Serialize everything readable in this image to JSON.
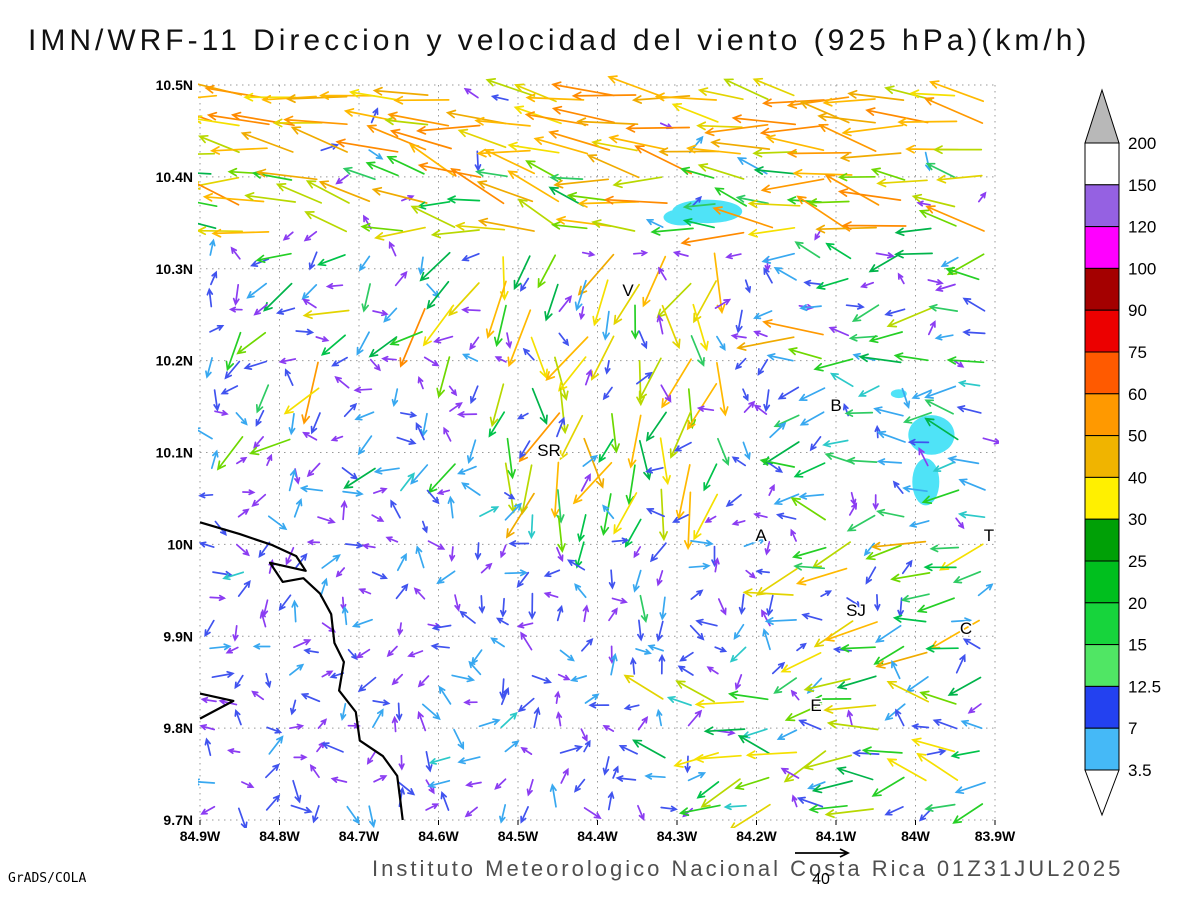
{
  "title": "IMN/WRF-11 Direccion y velocidad del viento (925 hPa)(km/h)",
  "footer": {
    "institute": "Instituto Meteorologico Nacional Costa Rica 01Z31JUL2025",
    "credit": "GrADS/COLA",
    "ref_label": "40"
  },
  "chart_data": {
    "type": "vector_field_map",
    "model": "IMN/WRF-11",
    "variable": "Direccion y velocidad del viento",
    "level": "925 hPa",
    "units": "km/h",
    "valid_time": "01Z31JUL2025",
    "reference_vector_kmh": 40,
    "lon_ticks": [
      "84.9W",
      "84.8W",
      "84.7W",
      "84.6W",
      "84.5W",
      "84.4W",
      "84.3W",
      "84.2W",
      "84.1W",
      "84W",
      "83.9W"
    ],
    "lat_ticks": [
      "10.5N",
      "10.4N",
      "10.3N",
      "10.2N",
      "10.1N",
      "10N",
      "9.9N",
      "9.8N",
      "9.7N"
    ],
    "colorbar": {
      "above_max_color": "#b8b8b8",
      "below_min_color": "#ffffff",
      "labels": [
        "200",
        "150",
        "120",
        "100",
        "90",
        "75",
        "60",
        "50",
        "40",
        "30",
        "25",
        "20",
        "15",
        "12.5",
        "7",
        "3.5"
      ],
      "segment_colors": [
        "#ffffff",
        "#9561e2",
        "#ff00ff",
        "#a40000",
        "#ec0000",
        "#ff5a00",
        "#ff9900",
        "#f0b400",
        "#fff000",
        "#00a006",
        "#00bf1e",
        "#17d43c",
        "#50e664",
        "#2341f0",
        "#45b9f7"
      ]
    },
    "cities": [
      {
        "label": "V",
        "fx": 0.538,
        "fy": 0.287
      },
      {
        "label": "B",
        "fx": 0.8,
        "fy": 0.443
      },
      {
        "label": "SR",
        "fx": 0.439,
        "fy": 0.505
      },
      {
        "label": "A",
        "fx": 0.706,
        "fy": 0.62
      },
      {
        "label": "SJ",
        "fx": 0.825,
        "fy": 0.722
      },
      {
        "label": "C",
        "fx": 0.964,
        "fy": 0.747
      },
      {
        "label": "E",
        "fx": 0.775,
        "fy": 0.852
      },
      {
        "label": "T",
        "fx": 0.992,
        "fy": 0.62
      }
    ],
    "coastline": [
      [
        0.0,
        0.595
      ],
      [
        0.05,
        0.611
      ],
      [
        0.091,
        0.626
      ],
      [
        0.121,
        0.641
      ],
      [
        0.133,
        0.661
      ],
      [
        0.088,
        0.65
      ],
      [
        0.104,
        0.676
      ],
      [
        0.13,
        0.671
      ],
      [
        0.151,
        0.692
      ],
      [
        0.165,
        0.72
      ],
      [
        0.169,
        0.759
      ],
      [
        0.181,
        0.785
      ],
      [
        0.175,
        0.824
      ],
      [
        0.196,
        0.853
      ],
      [
        0.201,
        0.892
      ],
      [
        0.23,
        0.913
      ],
      [
        0.248,
        0.94
      ],
      [
        0.252,
        0.973
      ],
      [
        0.255,
        1.0
      ]
    ],
    "coast_spit": [
      [
        0.0,
        0.828
      ],
      [
        0.042,
        0.838
      ],
      [
        0.0,
        0.862
      ]
    ],
    "shaded_patches": [
      {
        "cx": 0.638,
        "cy": 0.172,
        "rx": 0.044,
        "ry": 0.016
      },
      {
        "cx": 0.605,
        "cy": 0.18,
        "rx": 0.022,
        "ry": 0.011
      },
      {
        "cx": 0.92,
        "cy": 0.476,
        "rx": 0.029,
        "ry": 0.027
      },
      {
        "cx": 0.913,
        "cy": 0.54,
        "rx": 0.017,
        "ry": 0.032
      },
      {
        "cx": 0.879,
        "cy": 0.42,
        "rx": 0.01,
        "ry": 0.006
      }
    ],
    "shade_color": "#4fe3f7",
    "grid": {
      "cols": 30,
      "rows": 28
    },
    "seed": 12,
    "arrow_palette": [
      [
        6.5,
        [
          "#8b3cf2",
          "#8b3cf2",
          "#8b3cf2",
          "#4053ef"
        ]
      ],
      [
        11,
        [
          "#8b3cf2",
          "#4053ef",
          "#4053ef",
          "#38a8f0"
        ]
      ],
      [
        16,
        [
          "#38a8f0",
          "#38a8f0",
          "#2cc9c9",
          "#4053ef"
        ]
      ],
      [
        22,
        [
          "#00c34a",
          "#2ecb63",
          "#38a8f0"
        ]
      ],
      [
        30,
        [
          "#25cf25",
          "#6ed800",
          "#00b44a"
        ]
      ],
      [
        38,
        [
          "#e3d400",
          "#f5e000",
          "#b8d800"
        ]
      ],
      [
        46,
        [
          "#ffb900",
          "#f0ab00"
        ]
      ],
      [
        55,
        [
          "#ff8a00",
          "#ff9900"
        ]
      ],
      [
        67,
        [
          "#ff5500"
        ]
      ],
      [
        999,
        [
          "#f01800",
          "#ff00c8"
        ]
      ]
    ],
    "flow_regions": [
      {
        "name": "north-trades",
        "box": [
          0,
          0,
          1,
          0.105
        ],
        "dir": [
          172,
          206
        ],
        "speed": [
          30,
          55
        ],
        "light_mix": 0.05
      },
      {
        "name": "north-band-2",
        "box": [
          0,
          0.105,
          1,
          0.215
        ],
        "dir": [
          168,
          218
        ],
        "speed": [
          20,
          50
        ],
        "light_mix": 0.12
      },
      {
        "name": "central-downslope",
        "box": [
          0.38,
          0.215,
          0.66,
          0.56
        ],
        "dir": [
          65,
          135
        ],
        "speed": [
          16,
          46
        ],
        "light_mix": 0.28,
        "burst": 0.05
      },
      {
        "name": "west-mixed",
        "box": [
          0.02,
          0.215,
          0.38,
          0.54
        ],
        "dir": [
          95,
          175
        ],
        "speed": [
          6,
          34
        ],
        "light_mix": 0.5,
        "burst": 0.04
      },
      {
        "name": "east-mid",
        "box": [
          0.72,
          0.215,
          1.0,
          0.6
        ],
        "dir": [
          145,
          215
        ],
        "speed": [
          9,
          30
        ],
        "light_mix": 0.3,
        "burst": 0.03
      },
      {
        "name": "sj-gold",
        "box": [
          0.72,
          0.6,
          1.0,
          0.82
        ],
        "dir": [
          140,
          200
        ],
        "speed": [
          16,
          42
        ],
        "light_mix": 0.35
      },
      {
        "name": "south-of-sr",
        "box": [
          0.4,
          0.56,
          0.6,
          0.7
        ],
        "dir": [
          75,
          130
        ],
        "speed": [
          8,
          26
        ],
        "light_mix": 0.45
      },
      {
        "name": "southeast",
        "box": [
          0.58,
          0.82,
          1.0,
          1.0
        ],
        "dir": [
          140,
          215
        ],
        "speed": [
          10,
          38
        ],
        "light_mix": 0.4
      },
      {
        "name": "light-variable",
        "box": [
          0,
          0,
          1,
          1
        ],
        "dir": [
          0,
          360
        ],
        "speed": [
          3,
          13
        ],
        "light_mix": 0
      }
    ]
  }
}
